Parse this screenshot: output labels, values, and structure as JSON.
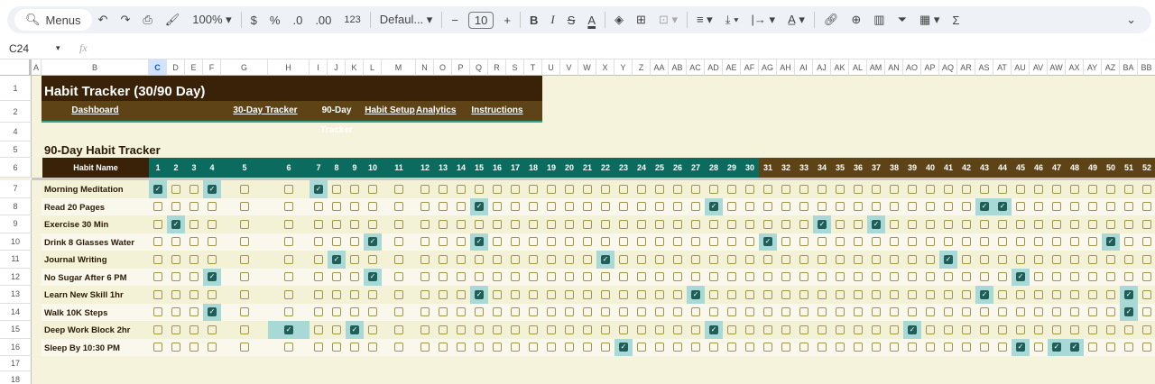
{
  "toolbar": {
    "search": "Menus",
    "zoom": "100%",
    "currency": "$",
    "percent": "%",
    "dec_less": ".0",
    "dec_more": ".00",
    "number_format": "123",
    "font": "Defaul...",
    "font_size": "10",
    "bold": "B",
    "italic": "I",
    "strike": "S",
    "text_color": "A",
    "sum": "Σ"
  },
  "formula_bar": {
    "name_box": "C24",
    "fx": "fx",
    "value": ""
  },
  "selected_column": "C",
  "columns": [
    "A",
    "B",
    "C",
    "D",
    "E",
    "F",
    "G",
    "H",
    "I",
    "J",
    "K",
    "L",
    "M",
    "N",
    "O",
    "P",
    "Q",
    "R",
    "S",
    "T",
    "U",
    "V",
    "W",
    "X",
    "Y",
    "Z",
    "AA",
    "AB",
    "AC",
    "AD",
    "AE",
    "AF",
    "AG",
    "AH",
    "AI",
    "AJ",
    "AK",
    "AL",
    "AM",
    "AN",
    "AO",
    "AP",
    "AQ",
    "AR",
    "AS",
    "AT",
    "AU",
    "AV",
    "AW",
    "AX",
    "AY",
    "AZ",
    "BA",
    "BB"
  ],
  "rows": [
    "1",
    "2",
    "4",
    "5",
    "6",
    "7",
    "8",
    "9",
    "10",
    "11",
    "12",
    "13",
    "14",
    "15",
    "16",
    "17",
    "18"
  ],
  "sheet": {
    "title": "Habit Tracker (30/90 Day)",
    "nav": [
      {
        "label": "Dashboard",
        "link": true
      },
      {
        "label": "30-Day Tracker",
        "link": true
      },
      {
        "label": "90-Day Tracker",
        "link": false
      },
      {
        "label": "Habit Setup",
        "link": true
      },
      {
        "label": "Analytics",
        "link": true
      },
      {
        "label": "Instructions",
        "link": true
      }
    ],
    "section_title": "90-Day Habit Tracker",
    "habit_header": "Habit Name",
    "days": [
      "1",
      "2",
      "3",
      "4",
      "5",
      "6",
      "7",
      "8",
      "9",
      "10",
      "11",
      "12",
      "13",
      "14",
      "15",
      "16",
      "17",
      "18",
      "19",
      "20",
      "21",
      "22",
      "23",
      "24",
      "25",
      "26",
      "27",
      "28",
      "29",
      "30",
      "31",
      "32",
      "33",
      "34",
      "35",
      "36",
      "37",
      "38",
      "39",
      "40",
      "41",
      "42",
      "43",
      "44",
      "45",
      "46",
      "47",
      "48",
      "49",
      "50",
      "51",
      "52"
    ],
    "habits": [
      {
        "name": "Morning Meditation",
        "checked": [
          1,
          4,
          7
        ]
      },
      {
        "name": "Read 20 Pages",
        "checked": [
          15,
          28,
          43,
          44
        ]
      },
      {
        "name": "Exercise 30 Min",
        "checked": [
          2,
          34,
          37
        ]
      },
      {
        "name": "Drink 8 Glasses Water",
        "checked": [
          10,
          15,
          31,
          50
        ]
      },
      {
        "name": "Journal Writing",
        "checked": [
          8,
          22,
          41
        ]
      },
      {
        "name": "No Sugar After 6 PM",
        "checked": [
          4,
          10,
          45
        ]
      },
      {
        "name": "Learn New Skill 1hr",
        "checked": [
          15,
          27,
          43,
          51
        ]
      },
      {
        "name": "Walk 10K Steps",
        "checked": [
          4,
          51
        ]
      },
      {
        "name": "Deep Work Block 2hr",
        "checked": [
          6,
          9,
          28,
          39
        ]
      },
      {
        "name": "Sleep By 10:30 PM",
        "checked": [
          23,
          45,
          47,
          48
        ]
      }
    ]
  },
  "colors": {
    "cream": "#f5f3dc",
    "title_bg": "#3a2208",
    "nav_bg": "#5e4316",
    "teal": "#0b6b5e",
    "brown_header": "#5e4316",
    "checked_highlight": "#a9d9d6",
    "checkbox_fill": "#1f5f5a"
  }
}
